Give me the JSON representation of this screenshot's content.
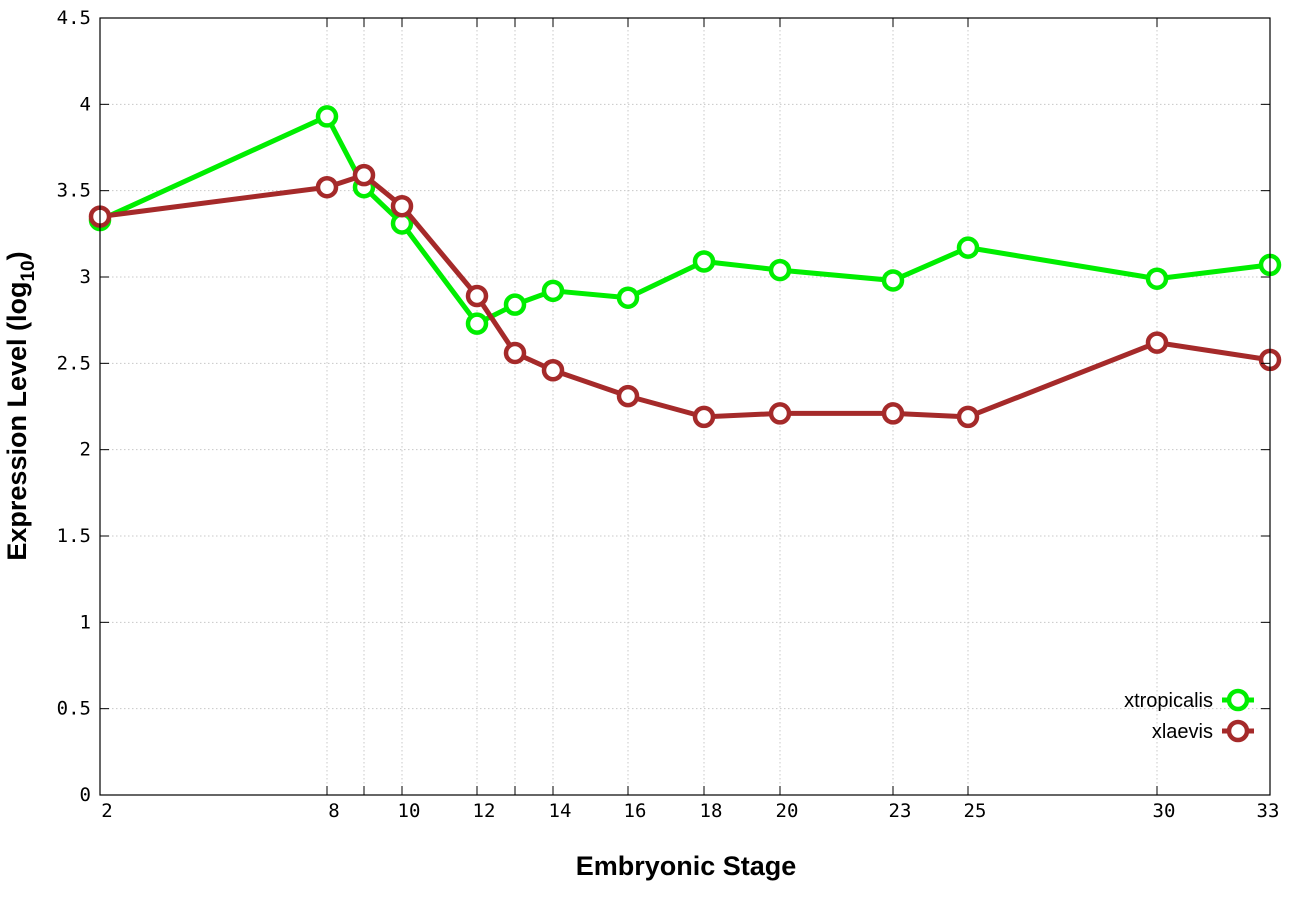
{
  "chart_data": {
    "type": "line",
    "xlabel": "Embryonic Stage",
    "ylabel_main": "Expression Level (log",
    "ylabel_sub": "10",
    "ylabel_close": ")",
    "ylim": [
      0,
      4.5
    ],
    "y_ticks": [
      "0",
      "0.5",
      "1",
      "1.5",
      "2",
      "2.5",
      "3",
      "3.5",
      "4",
      "4.5"
    ],
    "y_tick_values": [
      0,
      0.5,
      1,
      1.5,
      2,
      2.5,
      3,
      3.5,
      4,
      4.5
    ],
    "x_categories": [
      2,
      8,
      9,
      10,
      12,
      13,
      14,
      16,
      18,
      20,
      23,
      25,
      30,
      33
    ],
    "x_tick_labels": [
      "2",
      "8",
      "10",
      "12",
      "14",
      "16",
      "18",
      "20",
      "23",
      "25",
      "30",
      "33"
    ],
    "grid": true,
    "legend_position": "bottom-right",
    "series": [
      {
        "name": "xtropicalis",
        "color": "#00ee00",
        "x": [
          2,
          8,
          9,
          10,
          12,
          13,
          14,
          16,
          18,
          20,
          23,
          25,
          30,
          33
        ],
        "y": [
          3.33,
          3.93,
          3.52,
          3.31,
          2.73,
          2.84,
          2.92,
          2.88,
          3.09,
          3.04,
          2.98,
          3.17,
          2.99,
          3.07
        ]
      },
      {
        "name": "xlaevis",
        "color": "#a52a2a",
        "x": [
          2,
          8,
          9,
          10,
          12,
          13,
          14,
          16,
          18,
          20,
          23,
          25,
          30,
          33
        ],
        "y": [
          3.35,
          3.52,
          3.59,
          3.41,
          2.89,
          2.56,
          2.46,
          2.31,
          2.19,
          2.21,
          2.21,
          2.19,
          2.62,
          2.52
        ]
      }
    ]
  }
}
